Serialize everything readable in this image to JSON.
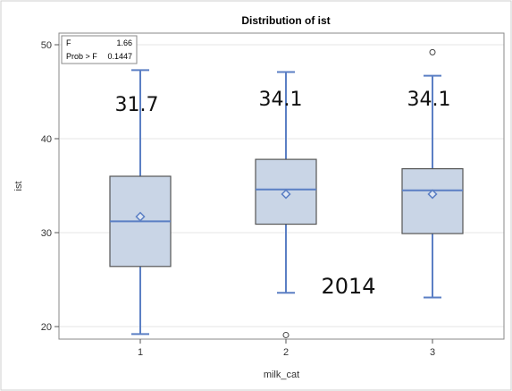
{
  "chart_data": {
    "type": "box",
    "title": "Distribution of ist",
    "xlabel": "milk_cat",
    "ylabel": "ist",
    "ylim": [
      18,
      51
    ],
    "yticks": [
      "20",
      "30",
      "40",
      "50"
    ],
    "categories": [
      "1",
      "2",
      "3"
    ],
    "boxes": [
      {
        "category": "1",
        "whisker_low": 19.2,
        "q1": 26.4,
        "median": 31.2,
        "q3": 36.0,
        "whisker_high": 47.3,
        "mean": 31.7,
        "outliers": []
      },
      {
        "category": "2",
        "whisker_low": 23.6,
        "q1": 30.9,
        "median": 34.6,
        "q3": 37.8,
        "whisker_high": 47.1,
        "mean": 34.1,
        "outliers": [
          19.1
        ]
      },
      {
        "category": "3",
        "whisker_low": 23.1,
        "q1": 29.9,
        "median": 34.5,
        "q3": 36.8,
        "whisker_high": 46.7,
        "mean": 34.1,
        "outliers": [
          49.2
        ]
      }
    ],
    "stats": {
      "f_label": "F",
      "f_value": "1.66",
      "p_label": "Prob > F",
      "p_value": "0.1447"
    },
    "annotations": {
      "means": [
        "31.7",
        "34.1",
        "34.1"
      ],
      "year": "2014"
    },
    "grid": true,
    "colors": {
      "box_fill": "#c9d5e6",
      "box_edge": "#555555",
      "whisker": "#5b7fc4",
      "median": "#5b7fc4",
      "mean_marker": "#5b7fc4",
      "grid": "#e6e6e6"
    }
  }
}
